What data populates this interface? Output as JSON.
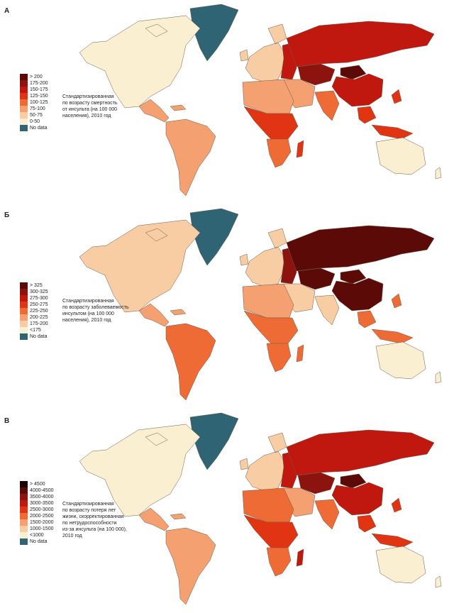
{
  "panels": [
    {
      "id": "A",
      "letter": "A",
      "caption_lines": [
        "Стандартизированная",
        "по возрасту смертность",
        "от инсульта (на 100 000",
        "населения), 2010 год"
      ],
      "legend": [
        {
          "label": "> 200",
          "color": "#5c0a08"
        },
        {
          "label": "175-200",
          "color": "#8c130e"
        },
        {
          "label": "150-175",
          "color": "#c0180f"
        },
        {
          "label": "125-150",
          "color": "#e03413"
        },
        {
          "label": "100-125",
          "color": "#ee6b35"
        },
        {
          "label": "75-100",
          "color": "#f4a070"
        },
        {
          "label": "50-75",
          "color": "#f8cda3"
        },
        {
          "label": "0-50",
          "color": "#fbefd2"
        },
        {
          "label": "No data",
          "color": "#2f6474"
        }
      ],
      "regions": {
        "north_america": 7,
        "greenland": 8,
        "central_america": 5,
        "south_america": 5,
        "europe_west": 6,
        "europe_east": 2,
        "russia": 2,
        "central_asia": 1,
        "china": 2,
        "south_asia": 4,
        "middle_east": 5,
        "africa_north": 5,
        "africa_central": 3,
        "africa_south": 4,
        "southeast_asia": 3,
        "australia": 7,
        "mongolia": 0,
        "madagascar": 3
      }
    },
    {
      "id": "B",
      "letter": "Б",
      "caption_lines": [
        "Стандартизированная",
        "по возрасту заболеваемость",
        "инсультом (на 100 000",
        "населения), 2010 год"
      ],
      "legend": [
        {
          "label": "> 325",
          "color": "#5c0a08"
        },
        {
          "label": "300-325",
          "color": "#8c130e"
        },
        {
          "label": "275-300",
          "color": "#c0180f"
        },
        {
          "label": "250-275",
          "color": "#e03413"
        },
        {
          "label": "225-250",
          "color": "#ee6b35"
        },
        {
          "label": "200-225",
          "color": "#f4a070"
        },
        {
          "label": "175-200",
          "color": "#f8cda3"
        },
        {
          "label": "<175",
          "color": "#fbefd2"
        },
        {
          "label": "No data",
          "color": "#2f6474"
        }
      ],
      "regions": {
        "north_america": 6,
        "greenland": 8,
        "central_america": 5,
        "south_america": 4,
        "europe_west": 6,
        "europe_east": 1,
        "russia": 0,
        "central_asia": 0,
        "china": 0,
        "south_asia": 6,
        "middle_east": 6,
        "africa_north": 5,
        "africa_central": 4,
        "africa_south": 4,
        "southeast_asia": 4,
        "australia": 7,
        "mongolia": 0,
        "madagascar": 4
      }
    },
    {
      "id": "C",
      "letter": "В",
      "caption_lines": [
        "Стандартизированная",
        "по возрасту потеря лет",
        "жизни, скорректированная",
        "по нетрудоспособности",
        "из-за инсульта (на 100 000),",
        "2010 год"
      ],
      "legend": [
        {
          "label": "> 4500",
          "color": "#1a0505"
        },
        {
          "label": "4000-4500",
          "color": "#5c0a08"
        },
        {
          "label": "3500-4000",
          "color": "#8c130e"
        },
        {
          "label": "3000-3500",
          "color": "#c0180f"
        },
        {
          "label": "2500-3000",
          "color": "#e03413"
        },
        {
          "label": "2000-2500",
          "color": "#ee6b35"
        },
        {
          "label": "1500-2000",
          "color": "#f4a070"
        },
        {
          "label": "1000-1500",
          "color": "#f8cda3"
        },
        {
          "label": "<1000",
          "color": "#fbefd2"
        },
        {
          "label": "No data",
          "color": "#2f6474"
        }
      ],
      "regions": {
        "north_america": 8,
        "greenland": 9,
        "central_america": 6,
        "south_america": 6,
        "europe_west": 7,
        "europe_east": 3,
        "russia": 3,
        "central_asia": 2,
        "china": 3,
        "south_asia": 5,
        "middle_east": 6,
        "africa_north": 5,
        "africa_central": 4,
        "africa_south": 5,
        "southeast_asia": 4,
        "australia": 8,
        "mongolia": 1,
        "madagascar": 3
      }
    }
  ]
}
